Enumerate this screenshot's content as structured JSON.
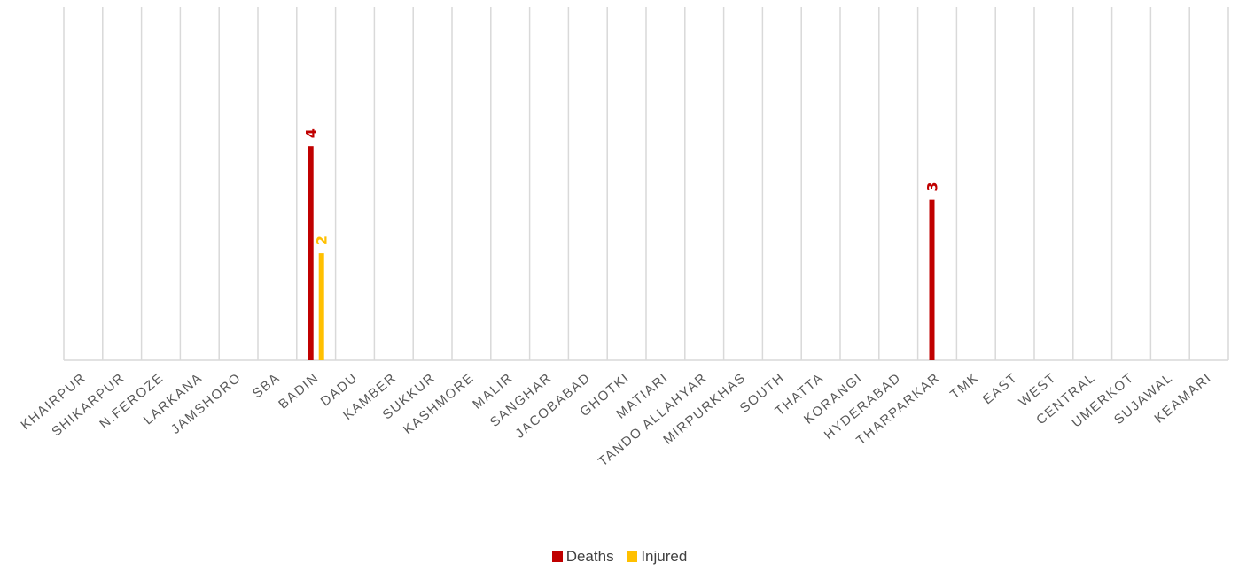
{
  "chart_data": {
    "type": "bar",
    "categories": [
      "KHAIRPUR",
      "SHIKARPUR",
      "N.FEROZE",
      "LARKANA",
      "JAMSHORO",
      "SBA",
      "BADIN",
      "DADU",
      "KAMBER",
      "SUKKUR",
      "KASHMORE",
      "MALIR",
      "SANGHAR",
      "JACOBABAD",
      "GHOTKI",
      "MATIARI",
      "TANDO ALLAHYAR",
      "MIRPURKHAS",
      "SOUTH",
      "THATTA",
      "KORANGI",
      "HYDERABAD",
      "THARPARKAR",
      "TMK",
      "EAST",
      "WEST",
      "CENTRAL",
      "UMERKOT",
      "SUJAWAL",
      "KEAMARI"
    ],
    "series": [
      {
        "name": "Deaths",
        "color": "#c00000",
        "values": [
          0,
          0,
          0,
          0,
          0,
          0,
          4,
          0,
          0,
          0,
          0,
          0,
          0,
          0,
          0,
          0,
          0,
          0,
          0,
          0,
          0,
          0,
          3,
          0,
          0,
          0,
          0,
          0,
          0,
          0
        ]
      },
      {
        "name": "Injured",
        "color": "#ffc000",
        "values": [
          0,
          0,
          0,
          0,
          0,
          0,
          2,
          0,
          0,
          0,
          0,
          0,
          0,
          0,
          0,
          0,
          0,
          0,
          0,
          0,
          0,
          0,
          0,
          0,
          0,
          0,
          0,
          0,
          0,
          0
        ]
      }
    ],
    "data_labels": [
      {
        "category": "BADIN",
        "series": "Deaths",
        "text": "4"
      },
      {
        "category": "BADIN",
        "series": "Injured",
        "text": "2"
      },
      {
        "category": "THARPARKAR",
        "series": "Deaths",
        "text": "3"
      }
    ],
    "ylim": [
      0,
      6.6
    ],
    "grid": "vertical",
    "legend_position": "bottom",
    "title": "",
    "xlabel": "",
    "ylabel": ""
  },
  "legend": [
    {
      "label": "Deaths",
      "color": "#c00000"
    },
    {
      "label": "Injured",
      "color": "#ffc000"
    }
  ]
}
